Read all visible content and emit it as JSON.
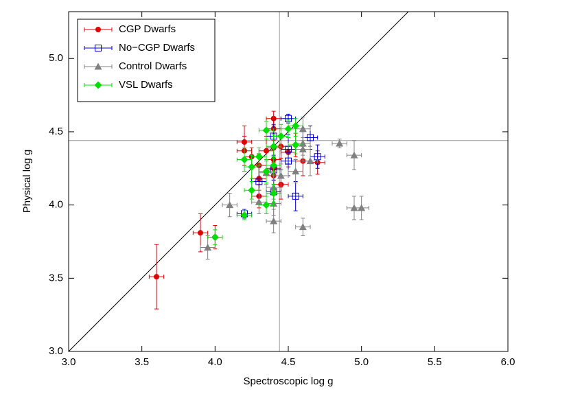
{
  "chart_data": {
    "type": "scatter",
    "x_label": "Spectroscopic log g",
    "y_label": "Physical log g",
    "xlim": [
      3.0,
      6.0
    ],
    "ylim": [
      3.0,
      5.32
    ],
    "xticks": [
      {
        "value": 3.0,
        "label": "3.0"
      },
      {
        "value": 3.5,
        "label": "3.5"
      },
      {
        "value": 4.0,
        "label": "4.0"
      },
      {
        "value": 4.5,
        "label": "4.5"
      },
      {
        "value": 5.0,
        "label": "5.0"
      },
      {
        "value": 5.5,
        "label": "5.5"
      },
      {
        "value": 6.0,
        "label": "6.0"
      }
    ],
    "yticks": [
      {
        "value": 3.0,
        "label": "3.0"
      },
      {
        "value": 3.5,
        "label": "3.5"
      },
      {
        "value": 4.0,
        "label": "4.0"
      },
      {
        "value": 4.5,
        "label": "4.5"
      },
      {
        "value": 5.0,
        "label": "5.0"
      }
    ],
    "identity_line": true,
    "vline": 4.44,
    "hline": 4.44,
    "legend": "top-left",
    "series": [
      {
        "name": "CGP Dwarfs",
        "color": "#e00000",
        "marker": "circle",
        "x": [
          3.6,
          3.9,
          4.0,
          4.2,
          4.2,
          4.25,
          4.3,
          4.3,
          4.3,
          4.35,
          4.4,
          4.4,
          4.4,
          4.4,
          4.4,
          4.4,
          4.45,
          4.45,
          4.5,
          4.55,
          4.6,
          4.7
        ],
        "values": [
          3.51,
          3.81,
          3.78,
          4.43,
          4.37,
          4.33,
          4.27,
          4.18,
          4.06,
          4.37,
          4.59,
          4.52,
          4.39,
          4.31,
          4.25,
          4.2,
          4.14,
          4.4,
          4.36,
          4.41,
          4.3,
          4.29
        ],
        "xerr": [
          0.05,
          0.05,
          0.05,
          0.05,
          0.05,
          0.05,
          0.05,
          0.05,
          0.05,
          0.05,
          0.05,
          0.05,
          0.05,
          0.05,
          0.05,
          0.05,
          0.05,
          0.05,
          0.05,
          0.05,
          0.05,
          0.05
        ],
        "yerr": [
          0.22,
          0.13,
          0.08,
          0.11,
          0.1,
          0.06,
          0.08,
          0.08,
          0.08,
          0.1,
          0.05,
          0.08,
          0.1,
          0.08,
          0.08,
          0.1,
          0.1,
          0.08,
          0.1,
          0.08,
          0.1,
          0.08
        ]
      },
      {
        "name": "No−CGP Dwarfs",
        "color": "#0000cc",
        "marker": "square-open",
        "x": [
          4.2,
          4.3,
          4.4,
          4.4,
          4.4,
          4.5,
          4.5,
          4.5,
          4.55,
          4.65,
          4.7
        ],
        "values": [
          3.94,
          4.16,
          4.47,
          4.24,
          4.09,
          4.59,
          4.38,
          4.3,
          4.06,
          4.46,
          4.33
        ],
        "xerr": [
          0.05,
          0.05,
          0.05,
          0.05,
          0.05,
          0.05,
          0.05,
          0.05,
          0.05,
          0.05,
          0.05
        ],
        "yerr": [
          0.03,
          0.1,
          0.08,
          0.1,
          0.08,
          0.03,
          0.1,
          0.1,
          0.1,
          0.08,
          0.08
        ]
      },
      {
        "name": "Control Dwarfs",
        "color": "#808080",
        "marker": "triangle",
        "x": [
          3.95,
          4.1,
          4.3,
          4.35,
          4.4,
          4.4,
          4.4,
          4.45,
          4.55,
          4.6,
          4.6,
          4.6,
          4.6,
          4.65,
          4.85,
          4.95,
          4.95,
          5.0
        ],
        "values": [
          3.71,
          4.0,
          4.02,
          4.22,
          4.12,
          4.01,
          3.89,
          4.2,
          4.23,
          4.52,
          4.42,
          4.38,
          3.85,
          4.3,
          4.42,
          4.34,
          3.98,
          3.98
        ],
        "xerr": [
          0.05,
          0.05,
          0.05,
          0.05,
          0.05,
          0.05,
          0.05,
          0.05,
          0.05,
          0.05,
          0.05,
          0.05,
          0.05,
          0.05,
          0.05,
          0.05,
          0.05,
          0.05
        ],
        "yerr": [
          0.08,
          0.08,
          0.08,
          0.08,
          0.08,
          0.08,
          0.08,
          0.08,
          0.08,
          0.08,
          0.08,
          0.08,
          0.06,
          0.1,
          0.03,
          0.1,
          0.08,
          0.08
        ]
      },
      {
        "name": "VSL Dwarfs",
        "color": "#00e000",
        "marker": "diamond",
        "x": [
          4.0,
          4.2,
          4.2,
          4.25,
          4.25,
          4.3,
          4.35,
          4.35,
          4.35,
          4.4,
          4.4,
          4.4,
          4.45,
          4.5,
          4.55,
          4.55
        ],
        "values": [
          3.78,
          3.93,
          4.31,
          4.26,
          4.1,
          4.33,
          4.51,
          4.23,
          4.0,
          4.4,
          4.27,
          4.08,
          4.47,
          4.52,
          4.54,
          4.41
        ],
        "xerr": [
          0.05,
          0.05,
          0.05,
          0.05,
          0.05,
          0.05,
          0.05,
          0.05,
          0.05,
          0.05,
          0.05,
          0.05,
          0.05,
          0.05,
          0.05,
          0.05
        ],
        "yerr": [
          0.05,
          0.03,
          0.08,
          0.08,
          0.06,
          0.06,
          0.06,
          0.08,
          0.06,
          0.08,
          0.06,
          0.06,
          0.08,
          0.06,
          0.05,
          0.06
        ]
      }
    ]
  }
}
